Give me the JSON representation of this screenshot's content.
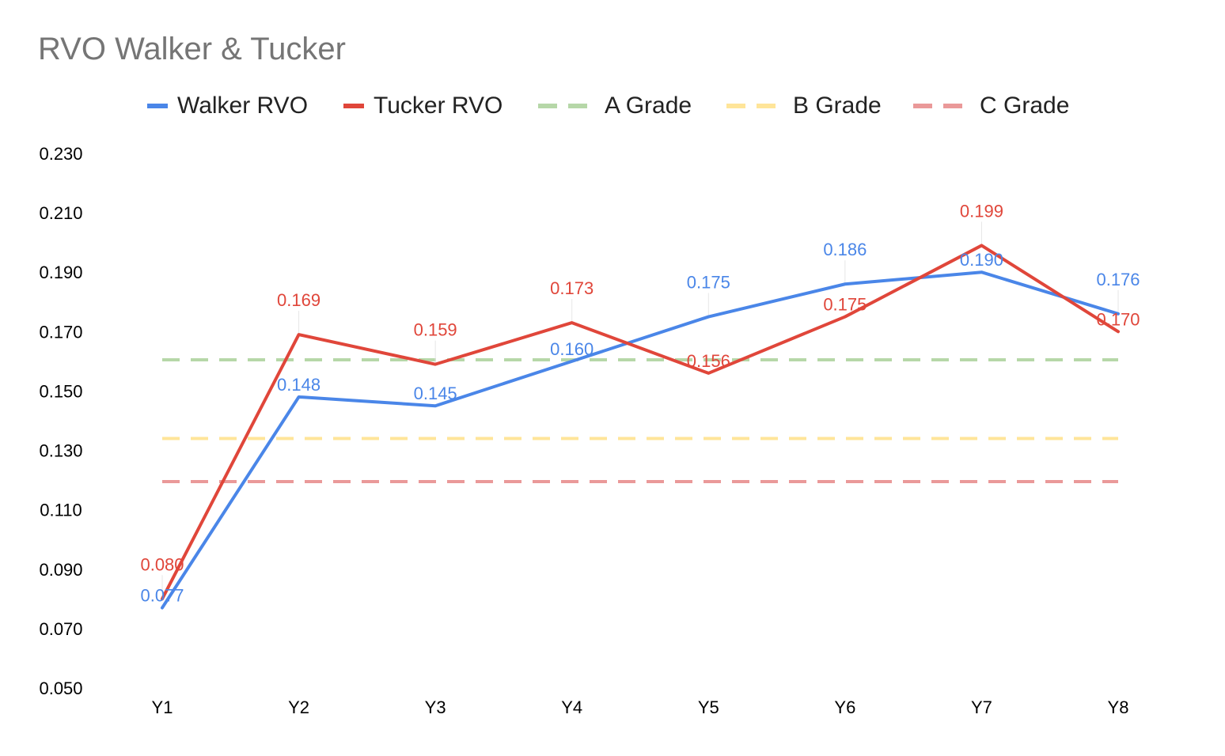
{
  "chart_data": {
    "type": "line",
    "title": "RVO Walker & Tucker",
    "categories": [
      "Y1",
      "Y2",
      "Y3",
      "Y4",
      "Y5",
      "Y6",
      "Y7",
      "Y8"
    ],
    "series": [
      {
        "name": "Walker RVO",
        "color": "#4a86e8",
        "style": "solid",
        "values": [
          0.077,
          0.148,
          0.145,
          0.16,
          0.175,
          0.186,
          0.19,
          0.176
        ],
        "labels": [
          "0.077",
          "0.148",
          "0.145",
          "0.160",
          "0.175",
          "0.186",
          "0.190",
          "0.176"
        ]
      },
      {
        "name": "Tucker RVO",
        "color": "#e0463a",
        "style": "solid",
        "values": [
          0.08,
          0.169,
          0.159,
          0.173,
          0.156,
          0.175,
          0.199,
          0.17
        ],
        "labels": [
          "0.080",
          "0.169",
          "0.159",
          "0.173",
          "0.156",
          "0.175",
          "0.199",
          "0.170"
        ]
      },
      {
        "name": "A Grade",
        "color": "#b6d7a8",
        "style": "dashed",
        "constant": 0.1605
      },
      {
        "name": "B Grade",
        "color": "#ffe599",
        "style": "dashed",
        "constant": 0.134
      },
      {
        "name": "C Grade",
        "color": "#ea9999",
        "style": "dashed",
        "constant": 0.1195
      }
    ],
    "y_ticks": [
      "0.230",
      "0.210",
      "0.190",
      "0.170",
      "0.150",
      "0.130",
      "0.110",
      "0.090",
      "0.070",
      "0.050"
    ],
    "ylim": [
      0.05,
      0.23
    ],
    "xlabel": "",
    "ylabel": "",
    "legend_position": "top",
    "grid": false
  }
}
